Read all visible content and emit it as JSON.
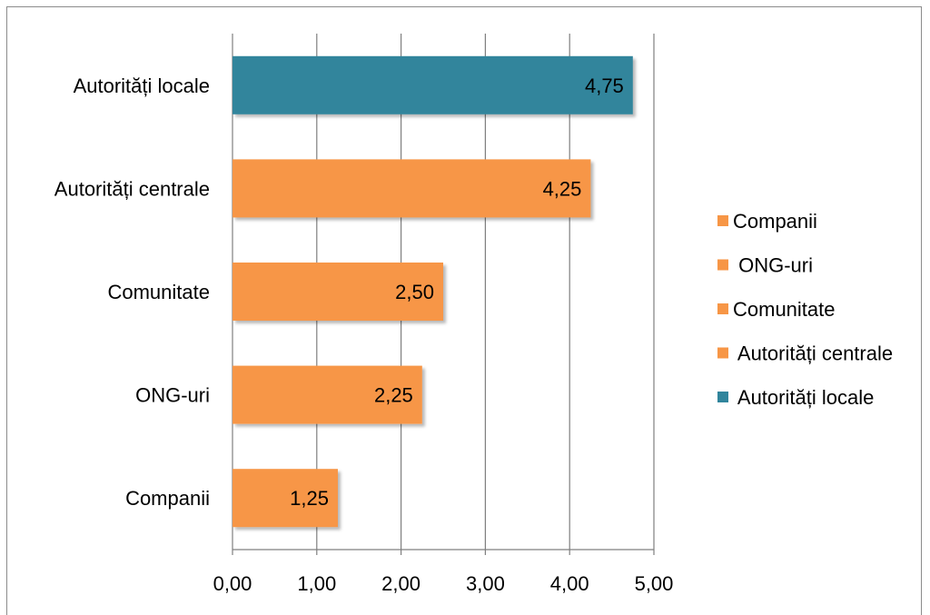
{
  "chart_data": {
    "type": "bar",
    "orientation": "horizontal",
    "categories": [
      "Companii",
      "ONG-uri",
      "Comunitate",
      "Autorități centrale",
      "Autorități locale"
    ],
    "values": [
      1.25,
      2.25,
      2.5,
      4.25,
      4.75
    ],
    "value_labels": [
      "1,25",
      "2,25",
      "2,50",
      "4,25",
      "4,75"
    ],
    "bar_colors": [
      "#F79646",
      "#F79646",
      "#F79646",
      "#F79646",
      "#31859C"
    ],
    "xlim": [
      0,
      5
    ],
    "x_ticks": [
      0,
      1,
      2,
      3,
      4,
      5
    ],
    "x_tick_labels": [
      "0,00",
      "1,00",
      "2,00",
      "3,00",
      "4,00",
      "5,00"
    ],
    "grid": "vertical",
    "legend": {
      "placement": "right",
      "entries": [
        {
          "label": "Companii",
          "color": "#F79646"
        },
        {
          "label": " ONG-uri",
          "color": "#F79646"
        },
        {
          "label": "Comunitate",
          "color": "#F79646"
        },
        {
          "label": " Autorități centrale",
          "color": "#F79646"
        },
        {
          "label": " Autorități locale",
          "color": "#31859C"
        }
      ]
    }
  }
}
